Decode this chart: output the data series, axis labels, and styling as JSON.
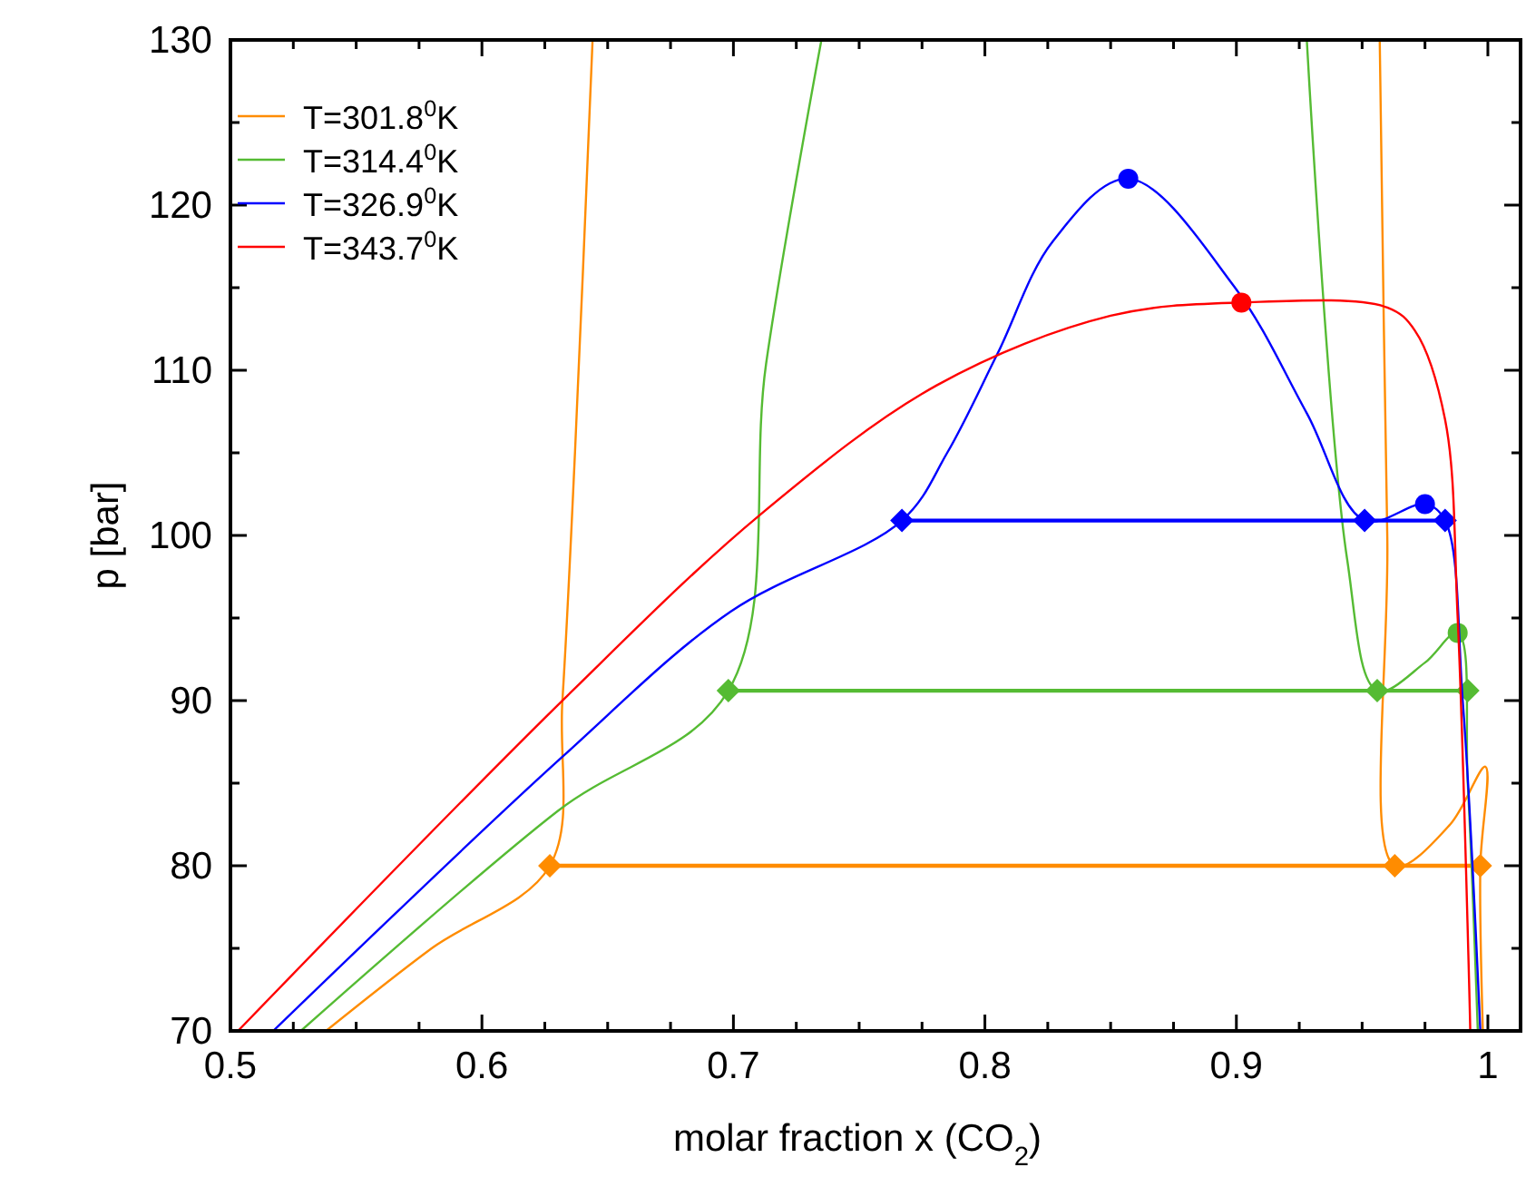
{
  "chart_data": {
    "type": "line",
    "xlabel": "molar fraction x (CO$_{2}$)",
    "ylabel": "p [bar]",
    "xlim": [
      0.5,
      1.013
    ],
    "ylim": [
      70,
      130
    ],
    "xticks": [
      0.5,
      {
        "value": 0.525,
        "label": null
      },
      {
        "value": 0.55,
        "label": null
      },
      {
        "value": 0.575,
        "label": null
      },
      0.6,
      {
        "value": 0.625,
        "label": null
      },
      {
        "value": 0.65,
        "label": null
      },
      {
        "value": 0.675,
        "label": null
      },
      0.7,
      {
        "value": 0.725,
        "label": null
      },
      {
        "value": 0.75,
        "label": null
      },
      {
        "value": 0.775,
        "label": null
      },
      0.8,
      {
        "value": 0.825,
        "label": null
      },
      {
        "value": 0.85,
        "label": null
      },
      {
        "value": 0.875,
        "label": null
      },
      0.9,
      {
        "value": 0.925,
        "label": null
      },
      {
        "value": 0.95,
        "label": null
      },
      {
        "value": 0.975,
        "label": null
      },
      1
    ],
    "yticks": [
      70,
      {
        "value": 75,
        "label": null
      },
      80,
      {
        "value": 85,
        "label": null
      },
      90,
      {
        "value": 95,
        "label": null
      },
      100,
      {
        "value": 105,
        "label": null
      },
      110,
      {
        "value": 115,
        "label": null
      },
      120,
      {
        "value": 125,
        "label": null
      },
      130
    ],
    "legend": "top left",
    "grid": false,
    "series": [
      {
        "name": "T=301.8$^{0}$K",
        "color": "#ff8c00",
        "marker": "none",
        "x": [
          0.538,
          0.58,
          0.627,
          0.632,
          0.637,
          0.644
        ],
        "values": [
          70,
          75,
          80,
          90,
          105,
          130
        ]
      },
      {
        "color": "#ff8c00",
        "marker": "none",
        "x": [
          0.957,
          0.96,
          0.963,
          0.985,
          0.999,
          0.997,
          0.998
        ],
        "values": [
          130,
          100,
          80,
          82.5,
          86,
          80,
          70
        ]
      },
      {
        "color": "#ff8c00",
        "marker": "none",
        "x": [
          0.627,
          0.963,
          0.997
        ],
        "values": [
          80,
          80,
          80
        ]
      },
      {
        "color": "#ff8c00",
        "type": "scatter",
        "marker": "diamond",
        "x": [
          0.627,
          0.963,
          0.997
        ],
        "values": [
          80,
          80,
          80
        ]
      },
      {
        "name": "T=314.4$^{0}$K",
        "color": "#55bb33",
        "marker": "none",
        "x": [
          0.528,
          0.63,
          0.698,
          0.713,
          0.735
        ],
        "values": [
          70,
          83.3,
          90.6,
          110.4,
          130
        ]
      },
      {
        "color": "#55bb33",
        "marker": "none",
        "x": [
          0.928,
          0.944,
          0.956,
          0.975,
          0.988,
          0.992,
          0.996
        ],
        "values": [
          130,
          98.6,
          90.6,
          92.3,
          94.1,
          85,
          70
        ]
      },
      {
        "color": "#55bb33",
        "marker": "none",
        "x": [
          0.698,
          0.956,
          0.992
        ],
        "values": [
          90.6,
          90.6,
          90.6
        ]
      },
      {
        "color": "#55bb33",
        "type": "scatter",
        "marker": "diamond",
        "x": [
          0.698,
          0.956,
          0.992
        ],
        "values": [
          90.6,
          90.6,
          90.6
        ]
      },
      {
        "color": "#55bb33",
        "type": "scatter",
        "marker": "circle",
        "x": [
          0.988
        ],
        "values": [
          94.1
        ]
      },
      {
        "name": "T=326.9$^{0}$K",
        "color": "#0000ff",
        "marker": "none",
        "x": [
          0.517,
          0.632,
          0.699,
          0.767,
          0.785,
          0.805,
          0.827,
          0.857,
          0.899,
          0.928,
          0.951,
          0.975,
          0.983,
          0.99,
          0.997
        ],
        "values": [
          70,
          86.6,
          95.4,
          100.9,
          105,
          111,
          117.8,
          121.6,
          115.1,
          107.4,
          100.9,
          101.9,
          100.9,
          90,
          70
        ]
      },
      {
        "color": "#0000ff",
        "marker": "none",
        "x": [
          0.767,
          0.951,
          0.983
        ],
        "values": [
          100.9,
          100.9,
          100.9
        ]
      },
      {
        "color": "#0000ff",
        "type": "scatter",
        "marker": "diamond",
        "x": [
          0.767,
          0.951,
          0.983
        ],
        "values": [
          100.9,
          100.9,
          100.9
        ]
      },
      {
        "color": "#0000ff",
        "type": "scatter",
        "marker": "circle",
        "x": [
          0.857,
          0.975
        ],
        "values": [
          121.6,
          101.9
        ]
      },
      {
        "name": "T=343.7$^{0}$K",
        "color": "#ff0000",
        "marker": "none",
        "x": [
          0.503,
          0.634,
          0.711,
          0.781,
          0.85,
          0.902,
          0.96,
          0.971,
          0.983,
          0.988,
          0.993
        ],
        "values": [
          70,
          90.3,
          101.3,
          109.1,
          113.3,
          114.1,
          113.8,
          112.4,
          107,
          95,
          70
        ]
      },
      {
        "color": "#ff0000",
        "type": "scatter",
        "marker": "circle",
        "x": [
          0.902
        ],
        "values": [
          114.1
        ]
      }
    ]
  }
}
